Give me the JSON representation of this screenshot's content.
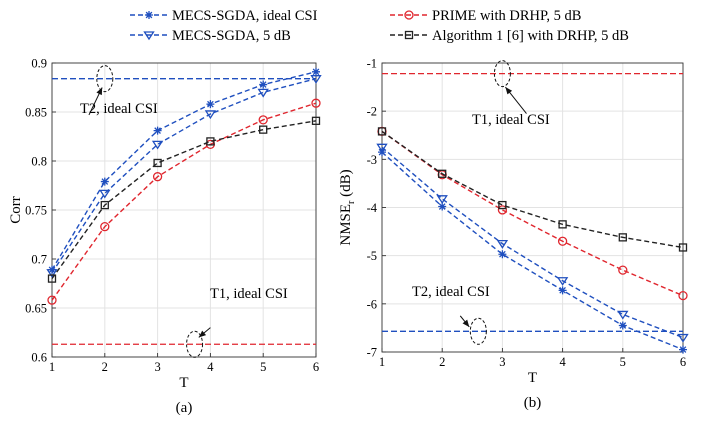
{
  "legend": [
    {
      "id": "mecs_ideal",
      "label": "MECS-SGDA, ideal CSI",
      "color": "#1f4fbf",
      "marker": "asterisk"
    },
    {
      "id": "prime",
      "label": "PRIME with DRHP, 5 dB",
      "color": "#e0262e",
      "marker": "circle"
    },
    {
      "id": "mecs_5db",
      "label": "MECS-SGDA, 5 dB",
      "color": "#1f4fbf",
      "marker": "triangle-down"
    },
    {
      "id": "alg1",
      "label": "Algorithm 1 [6] with DRHP, 5 dB",
      "color": "#222222",
      "marker": "square"
    }
  ],
  "chart_data": [
    {
      "type": "line",
      "panel_label": "(a)",
      "xlabel": "T",
      "ylabel": "Corr",
      "x": [
        1,
        2,
        3,
        4,
        5,
        6
      ],
      "xlim": [
        1,
        6
      ],
      "ylim": [
        0.6,
        0.9
      ],
      "xticks": [
        "1",
        "2",
        "3",
        "4",
        "5",
        "6"
      ],
      "yticks": [
        {
          "value": 0.6,
          "label": "0.6"
        },
        {
          "value": 0.65,
          "label": "0.65"
        },
        {
          "value": 0.7,
          "label": "0.7"
        },
        {
          "value": 0.75,
          "label": "0.75"
        },
        {
          "value": 0.8,
          "label": "0.8"
        },
        {
          "value": 0.85,
          "label": "0.85"
        },
        {
          "value": 0.9,
          "label": "0.9"
        }
      ],
      "grid": true,
      "series": [
        {
          "name": "MECS-SGDA, ideal CSI",
          "ref": "mecs_ideal",
          "values": [
            0.689,
            0.779,
            0.831,
            0.858,
            0.878,
            0.891
          ]
        },
        {
          "name": "MECS-SGDA, 5 dB",
          "ref": "mecs_5db",
          "values": [
            0.686,
            0.767,
            0.817,
            0.848,
            0.87,
            0.884
          ]
        },
        {
          "name": "PRIME with DRHP, 5 dB",
          "ref": "prime",
          "values": [
            0.658,
            0.733,
            0.784,
            0.817,
            0.842,
            0.859
          ]
        },
        {
          "name": "Algorithm 1 [6] with DRHP, 5 dB",
          "ref": "alg1",
          "values": [
            0.68,
            0.755,
            0.798,
            0.82,
            0.832,
            0.841
          ]
        }
      ],
      "hlines": [
        {
          "name": "T2, ideal CSI",
          "value": 0.884,
          "color": "#1f4fbf"
        },
        {
          "name": "T1, ideal CSI",
          "value": 0.613,
          "color": "#e0262e"
        }
      ],
      "annotations": [
        {
          "text": "T2, ideal CSI",
          "ellipse_x": 2.0,
          "ellipse_y": 0.884,
          "arrow_to_x": 1.95,
          "arrow_to_y": 0.875,
          "arrow_from_x": 1.7,
          "arrow_from_y": 0.847
        },
        {
          "text": "T1, ideal CSI",
          "ellipse_x": 3.7,
          "ellipse_y": 0.613,
          "arrow_to_x": 3.78,
          "arrow_to_y": 0.62,
          "arrow_from_x": 4.0,
          "arrow_from_y": 0.63
        }
      ]
    },
    {
      "type": "line",
      "panel_label": "(b)",
      "xlabel": "T",
      "ylabel": "NMSE",
      "ylabel_sub": "r",
      "ylabel_unit": " (dB)",
      "x": [
        1,
        2,
        3,
        4,
        5,
        6
      ],
      "xlim": [
        1,
        6
      ],
      "ylim": [
        -7,
        -1
      ],
      "xticks": [
        "1",
        "2",
        "3",
        "4",
        "5",
        "6"
      ],
      "yticks": [
        {
          "value": -1,
          "label": "-1"
        },
        {
          "value": -2,
          "label": "-2"
        },
        {
          "value": -3,
          "label": "-3"
        },
        {
          "value": -4,
          "label": "-4"
        },
        {
          "value": -5,
          "label": "-5"
        },
        {
          "value": -6,
          "label": "-6"
        },
        {
          "value": -7,
          "label": "-7"
        }
      ],
      "grid": true,
      "series": [
        {
          "name": "MECS-SGDA, ideal CSI",
          "ref": "mecs_ideal",
          "values": [
            -2.85,
            -3.98,
            -4.97,
            -5.72,
            -6.45,
            -6.95
          ]
        },
        {
          "name": "MECS-SGDA, 5 dB",
          "ref": "mecs_5db",
          "values": [
            -2.75,
            -3.82,
            -4.75,
            -5.52,
            -6.22,
            -6.7
          ]
        },
        {
          "name": "PRIME with DRHP, 5 dB",
          "ref": "prime",
          "values": [
            -2.42,
            -3.32,
            -4.05,
            -4.7,
            -5.3,
            -5.83
          ]
        },
        {
          "name": "Algorithm 1 [6] with DRHP, 5 dB",
          "ref": "alg1",
          "values": [
            -2.42,
            -3.3,
            -3.95,
            -4.35,
            -4.62,
            -4.83
          ]
        }
      ],
      "hlines": [
        {
          "name": "T1, ideal CSI",
          "value": -1.22,
          "color": "#e0262e"
        },
        {
          "name": "T2, ideal CSI",
          "value": -6.57,
          "color": "#1f4fbf"
        }
      ],
      "annotations": [
        {
          "text": "T1, ideal CSI",
          "ellipse_x": 3.0,
          "ellipse_y": -1.22,
          "arrow_to_x": 3.05,
          "arrow_to_y": -1.5,
          "arrow_from_x": 3.4,
          "arrow_from_y": -2.05
        },
        {
          "text": "T2, ideal CSI",
          "ellipse_x": 2.6,
          "ellipse_y": -6.57,
          "arrow_to_x": 2.45,
          "arrow_to_y": -6.48,
          "arrow_from_x": 2.3,
          "arrow_from_y": -6.25
        }
      ]
    }
  ]
}
